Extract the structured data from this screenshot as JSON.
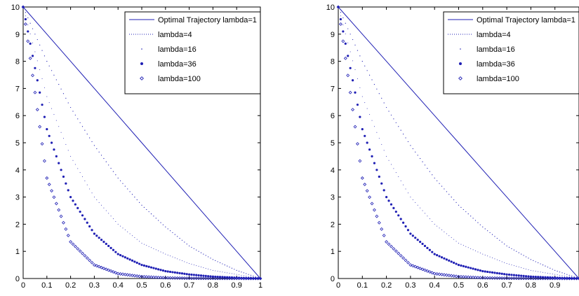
{
  "chart_data": [
    {
      "type": "line",
      "title": "",
      "xlabel": "",
      "ylabel": "",
      "xlim": [
        0,
        1
      ],
      "ylim": [
        0,
        10
      ],
      "x_ticks": [
        0,
        0.1,
        0.2,
        0.3,
        0.4,
        0.5,
        0.6,
        0.7,
        0.8,
        0.9,
        1
      ],
      "x_tick_labels": [
        "0",
        "0.1",
        "0.2",
        "0.3",
        "0.4",
        "0.5",
        "0.6",
        "0.7",
        "0.8",
        "0.9",
        "1"
      ],
      "y_ticks": [
        0,
        1,
        2,
        3,
        4,
        5,
        6,
        7,
        8,
        9,
        10
      ],
      "y_tick_labels": [
        "0",
        "1",
        "2",
        "3",
        "4",
        "5",
        "6",
        "7",
        "8",
        "9",
        "10"
      ],
      "grid": false,
      "legend_position": "top-right",
      "series": [
        {
          "name": "Optimal Trajectory lambda=1",
          "lambda": 1,
          "style": "solid",
          "x": [
            0,
            0.1,
            0.2,
            0.3,
            0.4,
            0.5,
            0.6,
            0.7,
            0.8,
            0.9,
            1
          ],
          "y": [
            10,
            9.0,
            8.0,
            7.0,
            6.0,
            5.0,
            4.0,
            3.0,
            2.0,
            1.0,
            0
          ]
        },
        {
          "name": "lambda=4",
          "lambda": 4,
          "style": "dotted",
          "x": [
            0,
            0.1,
            0.2,
            0.3,
            0.4,
            0.5,
            0.6,
            0.7,
            0.8,
            0.9,
            1
          ],
          "y": [
            10,
            8.0,
            6.3,
            4.9,
            3.7,
            2.7,
            1.9,
            1.2,
            0.7,
            0.3,
            0
          ]
        },
        {
          "name": "lambda=16",
          "lambda": 16,
          "style": "point",
          "x": [
            0,
            0.1,
            0.2,
            0.3,
            0.4,
            0.5,
            0.6,
            0.7,
            0.8,
            0.9,
            1
          ],
          "y": [
            10,
            6.7,
            4.5,
            3.0,
            2.0,
            1.3,
            0.9,
            0.55,
            0.3,
            0.15,
            0
          ]
        },
        {
          "name": "lambda=36",
          "lambda": 36,
          "style": "dot-marker",
          "x": [
            0,
            0.1,
            0.2,
            0.3,
            0.4,
            0.5,
            0.6,
            0.7,
            0.8,
            0.9,
            1
          ],
          "y": [
            10,
            5.5,
            3.0,
            1.65,
            0.9,
            0.5,
            0.27,
            0.15,
            0.07,
            0.03,
            0
          ]
        },
        {
          "name": "lambda=100",
          "lambda": 100,
          "style": "diamond",
          "x": [
            0,
            0.1,
            0.2,
            0.3,
            0.4,
            0.5,
            0.6,
            0.7,
            0.8,
            0.9,
            1
          ],
          "y": [
            10,
            3.7,
            1.35,
            0.5,
            0.18,
            0.07,
            0.025,
            0.01,
            0.004,
            0.001,
            0
          ]
        }
      ]
    },
    {
      "type": "line",
      "title": "",
      "xlabel": "",
      "ylabel": "",
      "xlim": [
        0,
        1
      ],
      "ylim": [
        0,
        10
      ],
      "x_ticks": [
        0,
        0.1,
        0.2,
        0.3,
        0.4,
        0.5,
        0.6,
        0.7,
        0.8,
        0.9
      ],
      "x_tick_labels": [
        "0",
        "0.1",
        "0.2",
        "0.3",
        "0.4",
        "0.5",
        "0.6",
        "0.7",
        "0.8",
        "0.9"
      ],
      "y_ticks": [
        0,
        1,
        2,
        3,
        4,
        5,
        6,
        7,
        8,
        9,
        10
      ],
      "y_tick_labels": [
        "0",
        "1",
        "2",
        "3",
        "4",
        "5",
        "6",
        "7",
        "8",
        "9",
        "10"
      ],
      "grid": false,
      "legend_position": "top-right",
      "series": [
        {
          "name": "Optimal Trajectory lambda=1",
          "lambda": 1,
          "style": "solid",
          "x": [
            0,
            0.1,
            0.2,
            0.3,
            0.4,
            0.5,
            0.6,
            0.7,
            0.8,
            0.9,
            1
          ],
          "y": [
            10,
            9.0,
            8.0,
            7.0,
            6.0,
            5.0,
            4.0,
            3.0,
            2.0,
            1.0,
            0
          ]
        },
        {
          "name": "lambda=4",
          "lambda": 4,
          "style": "dotted",
          "x": [
            0,
            0.1,
            0.2,
            0.3,
            0.4,
            0.5,
            0.6,
            0.7,
            0.8,
            0.9,
            1
          ],
          "y": [
            10,
            8.0,
            6.3,
            4.9,
            3.7,
            2.7,
            1.9,
            1.2,
            0.7,
            0.3,
            0
          ]
        },
        {
          "name": "lambda=16",
          "lambda": 16,
          "style": "point",
          "x": [
            0,
            0.1,
            0.2,
            0.3,
            0.4,
            0.5,
            0.6,
            0.7,
            0.8,
            0.9,
            1
          ],
          "y": [
            10,
            6.7,
            4.5,
            3.0,
            2.0,
            1.3,
            0.9,
            0.55,
            0.3,
            0.15,
            0
          ]
        },
        {
          "name": "lambda=36",
          "lambda": 36,
          "style": "dot-marker",
          "x": [
            0,
            0.1,
            0.2,
            0.3,
            0.4,
            0.5,
            0.6,
            0.7,
            0.8,
            0.9,
            1
          ],
          "y": [
            10,
            5.5,
            3.0,
            1.65,
            0.9,
            0.5,
            0.27,
            0.15,
            0.07,
            0.03,
            0
          ]
        },
        {
          "name": "lambda=100",
          "lambda": 100,
          "style": "diamond",
          "x": [
            0,
            0.1,
            0.2,
            0.3,
            0.4,
            0.5,
            0.6,
            0.7,
            0.8,
            0.9,
            1
          ],
          "y": [
            10,
            3.7,
            1.35,
            0.5,
            0.18,
            0.07,
            0.025,
            0.01,
            0.004,
            0.001,
            0
          ]
        }
      ]
    }
  ],
  "colors": {
    "series": "#1f1fb4",
    "axes": "#000000",
    "background": "#ffffff"
  }
}
